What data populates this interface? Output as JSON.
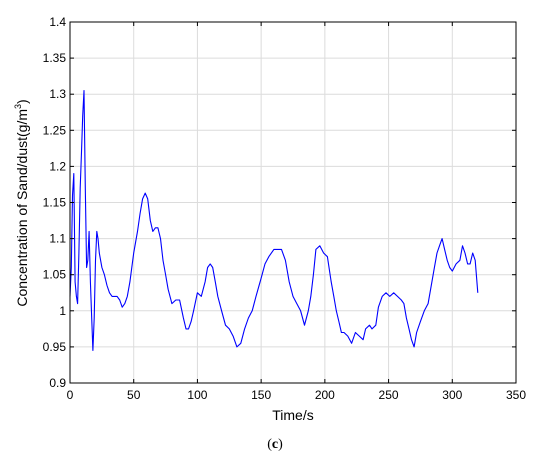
{
  "caption": {
    "open": "(",
    "letter": "c",
    "close": ")"
  },
  "chart_data": {
    "type": "line",
    "xlabel": "Time/s",
    "ylabel": "Concentration of Sand/dust(g/m",
    "ylabel_unit_superscript": "3",
    "ylabel_close": ")",
    "xlim": [
      0,
      350
    ],
    "ylim": [
      0.9,
      1.4
    ],
    "xticks": [
      "0",
      "50",
      "100",
      "150",
      "200",
      "250",
      "300",
      "350"
    ],
    "yticks": [
      "0.9",
      "0.95",
      "1",
      "1.05",
      "1.1",
      "1.15",
      "1.2",
      "1.25",
      "1.3",
      "1.35",
      "1.4"
    ],
    "grid": true,
    "colors": {
      "line": "#0000ff",
      "grid": "#dcdcdc",
      "axes": "#000000"
    },
    "series": [
      {
        "x": [
          0,
          1,
          2,
          3,
          4,
          5,
          6,
          7,
          8,
          9,
          10,
          11,
          12,
          13,
          14,
          15,
          16,
          17,
          18,
          19,
          20,
          21,
          22,
          23,
          25,
          27,
          29,
          31,
          33,
          35,
          37,
          39,
          41,
          43,
          45,
          47,
          50,
          53,
          55,
          57,
          59,
          61,
          63,
          65,
          67,
          69,
          71,
          73,
          75,
          77,
          80,
          83,
          86,
          89,
          91,
          93,
          95,
          97,
          100,
          103,
          106,
          108,
          110,
          112,
          114,
          116,
          119,
          122,
          125,
          128,
          131,
          134,
          137,
          140,
          143,
          146,
          150,
          153,
          156,
          160,
          163,
          166,
          169,
          172,
          175,
          178,
          181,
          184,
          187,
          189,
          191,
          193,
          196,
          199,
          202,
          205,
          207,
          209,
          211,
          213,
          215,
          218,
          221,
          224,
          227,
          230,
          232,
          235,
          237,
          240,
          242,
          245,
          248,
          251,
          254,
          257,
          260,
          262,
          264,
          266,
          268,
          270,
          272,
          275,
          278,
          281,
          284,
          286,
          288,
          290,
          292,
          294,
          296,
          298,
          300,
          303,
          306,
          308,
          310,
          312,
          314,
          316,
          318,
          320
        ],
        "y": [
          1.02,
          1.06,
          1.16,
          1.19,
          1.04,
          1.02,
          1.01,
          1.08,
          1.17,
          1.22,
          1.27,
          1.305,
          1.17,
          1.06,
          1.07,
          1.11,
          1.04,
          0.99,
          0.945,
          0.99,
          1.07,
          1.11,
          1.1,
          1.08,
          1.06,
          1.05,
          1.035,
          1.025,
          1.02,
          1.02,
          1.02,
          1.015,
          1.005,
          1.01,
          1.02,
          1.04,
          1.08,
          1.11,
          1.135,
          1.155,
          1.163,
          1.155,
          1.125,
          1.11,
          1.115,
          1.115,
          1.1,
          1.07,
          1.05,
          1.03,
          1.01,
          1.015,
          1.015,
          0.99,
          0.975,
          0.975,
          0.985,
          1.0,
          1.025,
          1.02,
          1.04,
          1.06,
          1.065,
          1.06,
          1.04,
          1.02,
          1.0,
          0.98,
          0.975,
          0.965,
          0.95,
          0.955,
          0.975,
          0.99,
          1.0,
          1.02,
          1.045,
          1.065,
          1.075,
          1.085,
          1.085,
          1.085,
          1.07,
          1.04,
          1.02,
          1.01,
          1.0,
          0.98,
          1.0,
          1.02,
          1.05,
          1.085,
          1.09,
          1.08,
          1.075,
          1.04,
          1.02,
          1.0,
          0.985,
          0.97,
          0.97,
          0.965,
          0.955,
          0.97,
          0.965,
          0.96,
          0.975,
          0.98,
          0.975,
          0.98,
          1.005,
          1.02,
          1.025,
          1.02,
          1.025,
          1.02,
          1.015,
          1.01,
          0.99,
          0.975,
          0.96,
          0.95,
          0.97,
          0.985,
          1.0,
          1.01,
          1.04,
          1.06,
          1.08,
          1.09,
          1.1,
          1.085,
          1.07,
          1.06,
          1.055,
          1.065,
          1.07,
          1.09,
          1.08,
          1.065,
          1.065,
          1.08,
          1.07,
          1.025
        ]
      }
    ]
  }
}
